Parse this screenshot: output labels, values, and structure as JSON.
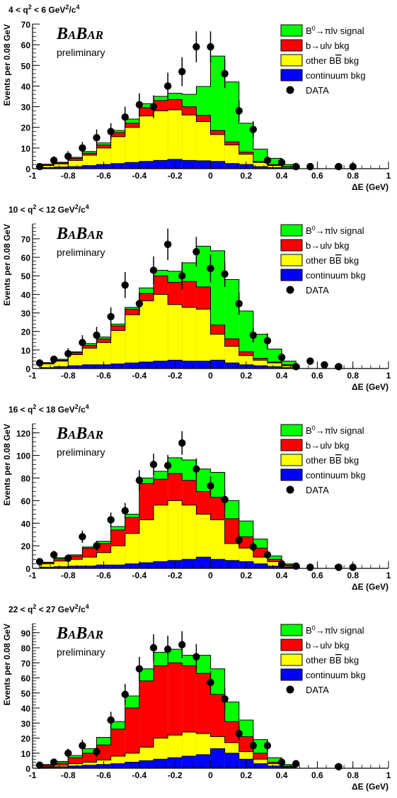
{
  "colors": {
    "signal": "#00ff00",
    "bulnu": "#ff0000",
    "otherBB": "#ffff00",
    "continuum": "#0000ff",
    "data": "#000000"
  },
  "chart_data": [
    {
      "type": "bar",
      "title": "4 < q² < 6 GeV²/c⁴",
      "title_parts": {
        "a": "4 < q",
        "b": "2",
        "c": " < 6 GeV",
        "d": "2",
        "e": "/c",
        "f": "4"
      },
      "xlabel": "ΔE (GeV)",
      "ylabel": "Events per 0.08 GeV",
      "xlim": [
        -1,
        1
      ],
      "ylim": [
        0,
        70
      ],
      "yticks": [
        0,
        10,
        20,
        30,
        40,
        50,
        60,
        70
      ],
      "ytick_labels": [
        "0",
        "10",
        "20",
        "30",
        "40",
        "50",
        "60",
        "70"
      ],
      "xticks": [
        -1,
        -0.8,
        -0.6,
        -0.4,
        -0.2,
        0,
        0.2,
        0.4,
        0.6,
        0.8,
        1
      ],
      "xtick_labels": [
        "-1",
        "-0.8",
        "-0.6",
        "-0.4",
        "-0.2",
        "0",
        "0.2",
        "0.4",
        "0.6",
        "0.8",
        "1"
      ],
      "bin_edges": [
        -0.96,
        -0.88,
        -0.8,
        -0.72,
        -0.64,
        -0.56,
        -0.48,
        -0.4,
        -0.32,
        -0.24,
        -0.16,
        -0.08,
        0.0,
        0.08,
        0.16,
        0.24,
        0.32,
        0.4,
        0.48
      ],
      "series": [
        {
          "name": "continuum bkg",
          "values": [
            0.5,
            0.8,
            1.0,
            1.5,
            2.0,
            2.5,
            3.0,
            3.5,
            4.0,
            4.5,
            4.0,
            3.8,
            3.5,
            2.5,
            2.0,
            1.0,
            0.5,
            0.3
          ]
        },
        {
          "name": "other BB̄ bkg",
          "values": [
            1,
            1.5,
            3,
            5,
            8,
            13,
            17,
            22,
            24,
            24,
            22,
            19,
            13,
            9,
            5,
            2,
            1,
            0.5
          ]
        },
        {
          "name": "b→ulν bkg",
          "values": [
            0.5,
            0.5,
            1,
            1,
            1.5,
            2,
            2,
            4,
            5,
            5,
            4,
            3,
            2,
            1.5,
            1,
            0.5,
            0.5,
            0.2
          ]
        },
        {
          "name": "B⁰→πlν signal",
          "values": [
            0.2,
            0.3,
            0.5,
            0.8,
            1,
            1,
            2,
            2,
            2,
            3,
            6,
            14,
            36,
            29,
            14,
            6,
            3,
            1
          ]
        }
      ],
      "data_points": {
        "name": "DATA",
        "x": [
          -0.96,
          -0.88,
          -0.8,
          -0.72,
          -0.64,
          -0.56,
          -0.48,
          -0.4,
          -0.32,
          -0.24,
          -0.16,
          -0.08,
          0.0,
          0.08,
          0.16,
          0.24,
          0.32,
          0.4,
          0.48,
          0.56,
          0.72,
          0.8
        ],
        "y": [
          1,
          4,
          6,
          10,
          15,
          18,
          25,
          31,
          30,
          40,
          47,
          59,
          59,
          46,
          28,
          19,
          4,
          3,
          1,
          1,
          1,
          1
        ],
        "err": [
          1,
          2,
          2.5,
          3,
          4,
          4,
          5,
          5.5,
          5.5,
          6.5,
          7,
          7.5,
          7.5,
          7,
          5,
          4,
          2,
          2,
          1,
          1,
          1,
          1
        ]
      }
    },
    {
      "type": "bar",
      "title": "10 < q² < 12 GeV²/c⁴",
      "title_parts": {
        "a": "10 < q",
        "b": "2",
        "c": " < 12 GeV",
        "d": "2",
        "e": "/c",
        "f": "4"
      },
      "xlabel": "ΔE (GeV)",
      "ylabel": "Events per 0.08 GeV",
      "xlim": [
        -1,
        1
      ],
      "ylim": [
        0,
        78
      ],
      "yticks": [
        0,
        10,
        20,
        30,
        40,
        50,
        60,
        70
      ],
      "ytick_labels": [
        "0",
        "10",
        "20",
        "30",
        "40",
        "50",
        "60",
        "70"
      ],
      "xticks": [
        -1,
        -0.8,
        -0.6,
        -0.4,
        -0.2,
        0,
        0.2,
        0.4,
        0.6,
        0.8,
        1
      ],
      "xtick_labels": [
        "-1",
        "-0.8",
        "-0.6",
        "-0.4",
        "-0.2",
        "0",
        "0.2",
        "0.4",
        "0.6",
        "0.8",
        "1"
      ],
      "bin_edges": [
        -0.96,
        -0.88,
        -0.8,
        -0.72,
        -0.64,
        -0.56,
        -0.48,
        -0.4,
        -0.32,
        -0.24,
        -0.16,
        -0.08,
        0.0,
        0.08,
        0.16,
        0.24,
        0.32,
        0.4,
        0.48
      ],
      "series": [
        {
          "name": "continuum bkg",
          "values": [
            0.5,
            1,
            1.5,
            2,
            2,
            2.5,
            3,
            3.5,
            4,
            4.5,
            4,
            4,
            4.5,
            3,
            2,
            1.5,
            1,
            0.5
          ]
        },
        {
          "name": "other BB̄ bkg",
          "values": [
            2,
            3,
            6,
            9,
            12,
            18,
            26,
            33,
            36,
            30,
            29,
            28,
            14,
            9,
            5,
            3,
            2,
            1
          ]
        },
        {
          "name": "b→ulν bkg",
          "values": [
            0.5,
            0.5,
            1,
            1.5,
            2,
            2.5,
            3,
            4,
            10,
            12,
            14,
            12,
            5,
            4,
            2,
            1,
            0.5,
            0.5
          ]
        },
        {
          "name": "B⁰→πlν signal",
          "values": [
            0.2,
            0.5,
            0.5,
            1,
            1,
            1,
            1,
            3,
            3,
            6,
            10,
            22,
            40,
            32,
            22,
            13,
            7,
            2
          ]
        }
      ],
      "data_points": {
        "name": "DATA",
        "x": [
          -0.96,
          -0.88,
          -0.8,
          -0.72,
          -0.64,
          -0.56,
          -0.48,
          -0.4,
          -0.32,
          -0.24,
          -0.16,
          -0.08,
          0.0,
          0.08,
          0.16,
          0.24,
          0.32,
          0.4,
          0.48,
          0.56,
          0.64,
          0.72
        ],
        "y": [
          3,
          5,
          8,
          14,
          18,
          28,
          45,
          35,
          53,
          67,
          50,
          63,
          54,
          51,
          35,
          18,
          15,
          6,
          1,
          4,
          2,
          1
        ],
        "err": [
          2,
          2,
          3,
          4,
          4.5,
          5,
          7,
          6,
          7.5,
          8.5,
          7.5,
          8,
          7.5,
          7,
          6,
          4,
          4,
          2.5,
          1,
          2,
          1.5,
          1
        ]
      }
    },
    {
      "type": "bar",
      "title": "16 < q² < 18 GeV²/c⁴",
      "title_parts": {
        "a": "16 < q",
        "b": "2",
        "c": " < 18 GeV",
        "d": "2",
        "e": "/c",
        "f": "4"
      },
      "xlabel": "ΔE (GeV)",
      "ylabel": "Events per 0.08 GeV",
      "xlim": [
        -1,
        1
      ],
      "ylim": [
        0,
        128
      ],
      "yticks": [
        0,
        20,
        40,
        60,
        80,
        100,
        120
      ],
      "ytick_labels": [
        "0",
        "20",
        "40",
        "60",
        "80",
        "100",
        "120"
      ],
      "xticks": [
        -1,
        -0.8,
        -0.6,
        -0.4,
        -0.2,
        0,
        0.2,
        0.4,
        0.6,
        0.8,
        1
      ],
      "xtick_labels": [
        "-1",
        "-0.8",
        "-0.6",
        "-0.4",
        "-0.2",
        "0",
        "0.2",
        "0.4",
        "0.6",
        "0.8",
        "1"
      ],
      "bin_edges": [
        -0.96,
        -0.88,
        -0.8,
        -0.72,
        -0.64,
        -0.56,
        -0.48,
        -0.4,
        -0.32,
        -0.24,
        -0.16,
        -0.08,
        0.0,
        0.08,
        0.16,
        0.24,
        0.32,
        0.4,
        0.48
      ],
      "series": [
        {
          "name": "continuum bkg",
          "values": [
            1,
            1.5,
            2,
            2,
            3,
            3,
            4,
            5,
            6,
            7,
            8,
            10,
            8,
            7,
            6,
            4,
            2,
            1
          ]
        },
        {
          "name": "other BB̄ bkg",
          "values": [
            3,
            5,
            6,
            8,
            11,
            17,
            27,
            38,
            50,
            53,
            48,
            38,
            35,
            15,
            12,
            6,
            4,
            1
          ]
        },
        {
          "name": "b→ulν bkg",
          "values": [
            1,
            2,
            3,
            8,
            8,
            14,
            14,
            32,
            23,
            24,
            22,
            20,
            20,
            22,
            10,
            8,
            2,
            1
          ]
        },
        {
          "name": "B⁰→πlν signal",
          "values": [
            0.5,
            1,
            1,
            1,
            2,
            3,
            3,
            5,
            7,
            14,
            18,
            20,
            22,
            16,
            14,
            8,
            3,
            1
          ]
        }
      ],
      "data_points": {
        "name": "DATA",
        "x": [
          -0.96,
          -0.88,
          -0.8,
          -0.72,
          -0.64,
          -0.56,
          -0.48,
          -0.4,
          -0.32,
          -0.24,
          -0.16,
          -0.08,
          0.0,
          0.08,
          0.16,
          0.24,
          0.32,
          0.4,
          0.48,
          0.56,
          0.72,
          0.8
        ],
        "y": [
          6,
          12,
          9,
          28,
          20,
          43,
          51,
          78,
          92,
          91,
          111,
          88,
          73,
          61,
          25,
          19,
          12,
          4,
          2,
          1,
          1,
          1
        ],
        "err": [
          2.5,
          3.5,
          3,
          5.5,
          4.5,
          6.5,
          7,
          9,
          9.5,
          9.5,
          10.5,
          9.5,
          8.5,
          8,
          5,
          4.5,
          3.5,
          2,
          1.5,
          1,
          1,
          1
        ]
      }
    },
    {
      "type": "bar",
      "title": "22 < q² < 27 GeV²/c⁴",
      "title_parts": {
        "a": "22 < q",
        "b": "2",
        "c": " < 27 GeV",
        "d": "2",
        "e": "/c",
        "f": "4"
      },
      "xlabel": "ΔE (GeV)",
      "ylabel": "Events per 0.08 GeV",
      "xlim": [
        -1,
        1
      ],
      "ylim": [
        0,
        96
      ],
      "yticks": [
        0,
        10,
        20,
        30,
        40,
        50,
        60,
        70,
        80,
        90
      ],
      "ytick_labels": [
        "0",
        "10",
        "20",
        "30",
        "40",
        "50",
        "60",
        "70",
        "80",
        "90"
      ],
      "xticks": [
        -1,
        -0.8,
        -0.6,
        -0.4,
        -0.2,
        0,
        0.2,
        0.4,
        0.6,
        0.8,
        1
      ],
      "xtick_labels": [
        "-1",
        "-0.8",
        "-0.6",
        "-0.4",
        "-0.2",
        "0",
        "0.2",
        "0.4",
        "0.6",
        "0.8",
        "1"
      ],
      "bin_edges": [
        -0.96,
        -0.88,
        -0.8,
        -0.72,
        -0.64,
        -0.56,
        -0.48,
        -0.4,
        -0.32,
        -0.24,
        -0.16,
        -0.08,
        0.0,
        0.08,
        0.16,
        0.24,
        0.32,
        0.4,
        0.48
      ],
      "series": [
        {
          "name": "continuum bkg",
          "values": [
            0.5,
            1,
            1.5,
            2,
            2.5,
            3,
            4,
            5,
            6,
            7,
            8,
            9,
            13,
            10,
            6,
            3,
            1.5,
            0.5
          ]
        },
        {
          "name": "other BB̄ bkg",
          "values": [
            0.5,
            1,
            1.5,
            2,
            3,
            5,
            6,
            9,
            14,
            15,
            16,
            14,
            8,
            7,
            5,
            3,
            1.5,
            0.5
          ]
        },
        {
          "name": "b→ulν bkg",
          "values": [
            1,
            1.5,
            4,
            6,
            10,
            18,
            30,
            44,
            48,
            48,
            44,
            40,
            28,
            14,
            10,
            4,
            1,
            0.5
          ]
        },
        {
          "name": "B⁰→πlν signal",
          "values": [
            0.5,
            1,
            1.5,
            3,
            5,
            5,
            8,
            8,
            9,
            9,
            7,
            12,
            17,
            13,
            11,
            9,
            3,
            1
          ]
        }
      ],
      "data_points": {
        "name": "DATA",
        "x": [
          -0.96,
          -0.88,
          -0.8,
          -0.72,
          -0.64,
          -0.56,
          -0.48,
          -0.4,
          -0.32,
          -0.24,
          -0.16,
          -0.08,
          0.0,
          0.08,
          0.16,
          0.24,
          0.32,
          0.4,
          0.48,
          0.72
        ],
        "y": [
          2,
          4,
          10,
          15,
          11,
          32,
          49,
          66,
          80,
          79,
          82,
          74,
          57,
          46,
          23,
          15,
          15,
          4,
          3,
          1
        ],
        "err": [
          1.5,
          2,
          3,
          4,
          3.5,
          5.5,
          7,
          8,
          9,
          9,
          9,
          8.5,
          7.5,
          7,
          5,
          4,
          4,
          2,
          1.5,
          1
        ]
      }
    }
  ],
  "legend": {
    "items": [
      {
        "key": "signal",
        "label_a": "B",
        "label_sup": "0",
        "label_b": "→πlν signal"
      },
      {
        "key": "bulnu",
        "label_a": "b→ulν bkg"
      },
      {
        "key": "otherBB",
        "label_a": "other B",
        "label_bar": "B",
        "label_b": " bkg"
      },
      {
        "key": "continuum",
        "label_a": "continuum bkg"
      },
      {
        "key": "data",
        "label_a": "DATA"
      }
    ]
  },
  "experiment_logo": {
    "b1": "B",
    "a1": "A",
    "b2": "B",
    "ar": "AR",
    "preliminary": "preliminary"
  }
}
